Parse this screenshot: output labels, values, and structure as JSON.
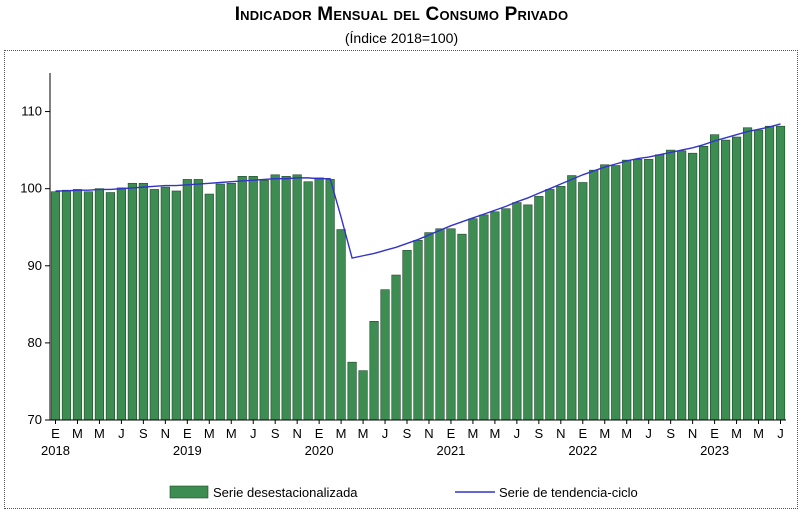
{
  "chart_data": {
    "type": "bar+line",
    "title": "Indicador Mensual del Consumo Privado",
    "subtitle": "(Índice 2018=100)",
    "xlabel": "",
    "ylabel": "",
    "ylim": [
      70,
      115
    ],
    "yticks": [
      70,
      80,
      90,
      100,
      110
    ],
    "x_tick_labels": [
      "E",
      "M",
      "M",
      "J",
      "S",
      "N",
      "E",
      "M",
      "M",
      "J",
      "S",
      "N",
      "E",
      "M",
      "M",
      "J",
      "S",
      "N",
      "E",
      "M",
      "M",
      "J",
      "S",
      "N",
      "E",
      "M",
      "M",
      "J",
      "S",
      "N",
      "E",
      "M",
      "M",
      "J"
    ],
    "year_labels": [
      "2018",
      "2019",
      "2020",
      "2021",
      "2022",
      "2023"
    ],
    "bar_color": "#3d8c52",
    "line_color": "#3333cc",
    "series": [
      {
        "name": "Serie desestacionalizada",
        "kind": "bar",
        "values": [
          99.6,
          99.8,
          99.9,
          99.6,
          100.0,
          99.5,
          100.1,
          100.7,
          100.7,
          99.9,
          100.2,
          99.7,
          101.2,
          101.2,
          99.3,
          100.6,
          100.7,
          101.6,
          101.6,
          101.1,
          101.8,
          101.6,
          101.8,
          100.9,
          101.4,
          101.2,
          94.7,
          77.5,
          76.4,
          82.8,
          86.9,
          88.8,
          92.0,
          93.3,
          94.3,
          94.8,
          94.8,
          94.1,
          96.1,
          96.6,
          97.0,
          97.4,
          98.2,
          97.9,
          99.0,
          99.9,
          100.3,
          101.7,
          100.8,
          102.4,
          103.1,
          103.0,
          103.7,
          103.8,
          103.8,
          104.4,
          105.0,
          104.9,
          104.6,
          105.5,
          107.0,
          106.3,
          106.7,
          107.9,
          107.6,
          108.1,
          108.1
        ]
      },
      {
        "name": "Serie de tendencia-ciclo",
        "kind": "line",
        "values": [
          99.7,
          99.7,
          99.8,
          99.8,
          99.9,
          99.9,
          100.0,
          100.1,
          100.2,
          100.3,
          100.4,
          100.4,
          100.5,
          100.6,
          100.7,
          100.8,
          100.9,
          101.0,
          101.1,
          101.2,
          101.3,
          101.3,
          101.4,
          101.4,
          101.3,
          101.3,
          96.3,
          91.0,
          91.3,
          91.6,
          92.0,
          92.4,
          92.9,
          93.4,
          94.0,
          94.6,
          95.2,
          95.7,
          96.2,
          96.7,
          97.2,
          97.7,
          98.3,
          98.8,
          99.4,
          100.0,
          100.6,
          101.2,
          101.8,
          102.3,
          102.8,
          103.2,
          103.6,
          103.9,
          104.1,
          104.4,
          104.7,
          105.0,
          105.3,
          105.7,
          106.2,
          106.6,
          107.0,
          107.4,
          107.7,
          108.0,
          108.4
        ]
      }
    ],
    "legend": [
      {
        "label": "Serie desestacionalizada",
        "kind": "bar"
      },
      {
        "label": "Serie de tendencia-ciclo",
        "kind": "line"
      }
    ],
    "legend_position": "bottom",
    "grid": false
  }
}
